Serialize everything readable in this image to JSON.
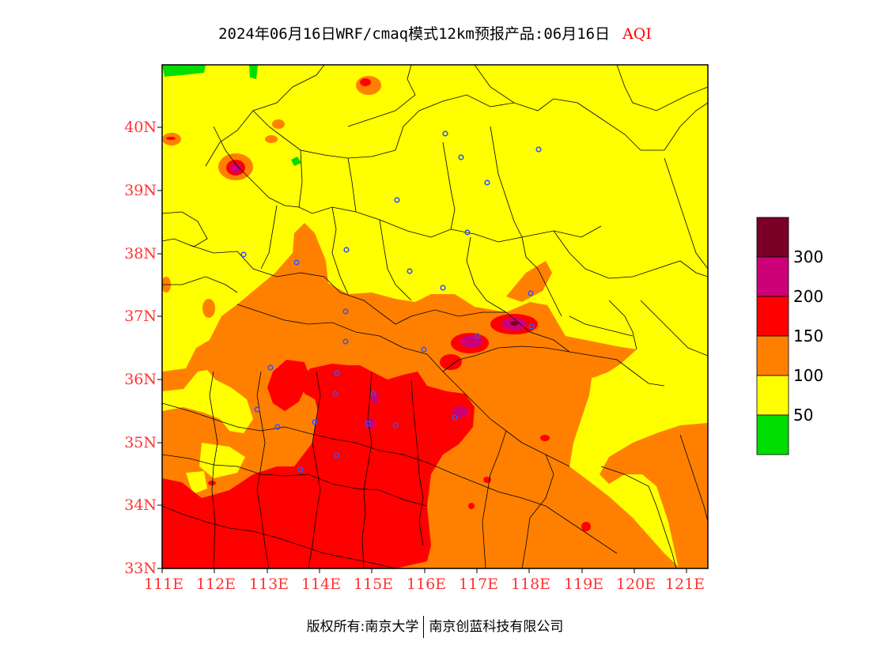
{
  "title": {
    "main": "2024年06月16日WRF/cmaq模式12km预报产品:06月16日",
    "tag": "AQI"
  },
  "axes": {
    "lat_ticks": [
      "40N",
      "39N",
      "38N",
      "37N",
      "36N",
      "35N",
      "34N",
      "33N"
    ],
    "lon_ticks": [
      "111E",
      "112E",
      "113E",
      "114E",
      "115E",
      "116E",
      "117E",
      "118E",
      "119E",
      "120E",
      "121E"
    ],
    "lat_range": [
      33,
      41
    ],
    "lon_range": [
      111,
      121.4
    ]
  },
  "legend": {
    "labels": [
      "300",
      "200",
      "150",
      "100",
      "50"
    ],
    "colors": [
      "#7a0028",
      "#cc0077",
      "#ff0000",
      "#ff8000",
      "#ffff00",
      "#00dd00"
    ]
  },
  "colors": {
    "good": "#00dd00",
    "moderate": "#ffff00",
    "sensitive": "#ff8000",
    "unhealthy": "#ff0000",
    "very_unhealthy": "#cc0077",
    "hazardous": "#7a0028",
    "axis_label": "#ff3333",
    "station_marker": "#3355ff"
  },
  "footer": {
    "left": "版权所有:南京大学",
    "right": "南京创蓝科技有限公司"
  }
}
